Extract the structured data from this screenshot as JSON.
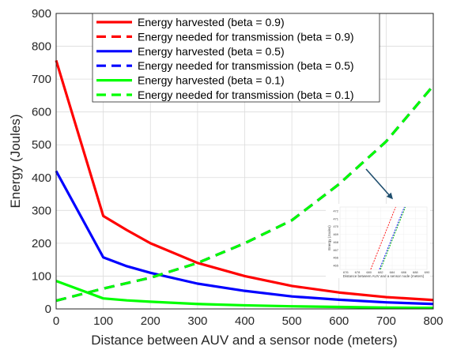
{
  "chart_data": {
    "type": "line",
    "xlabel": "Distance between AUV and a sensor node (meters)",
    "ylabel": "Energy (Joules)",
    "xlim": [
      0,
      800
    ],
    "ylim": [
      0,
      900
    ],
    "xticks": [
      0,
      100,
      200,
      300,
      400,
      500,
      600,
      700,
      800
    ],
    "yticks": [
      0,
      100,
      200,
      300,
      400,
      500,
      600,
      700,
      800,
      900
    ],
    "grid": true,
    "legend_position": "top-center",
    "series": [
      {
        "name": "Energy harvested (beta = 0.9)",
        "color": "#ff0000",
        "style": "solid",
        "x": [
          0,
          100,
          150,
          200,
          300,
          400,
          500,
          600,
          700,
          800
        ],
        "y": [
          757,
          283,
          240,
          200,
          140,
          100,
          70,
          50,
          36,
          27
        ]
      },
      {
        "name": "Energy needed for transmission (beta = 0.9)",
        "color": "#ff0000",
        "style": "dashed",
        "x": [
          0,
          100,
          200,
          300,
          400,
          500,
          600,
          700,
          800
        ],
        "y": [
          25,
          62,
          95,
          140,
          200,
          270,
          380,
          510,
          680
        ]
      },
      {
        "name": "Energy harvested (beta = 0.5)",
        "color": "#0000ff",
        "style": "solid",
        "x": [
          0,
          100,
          150,
          200,
          300,
          400,
          500,
          600,
          700,
          800
        ],
        "y": [
          420,
          157,
          130,
          110,
          77,
          55,
          38,
          28,
          20,
          15
        ]
      },
      {
        "name": "Energy needed for transmission (beta = 0.5)",
        "color": "#0000ff",
        "style": "dashed",
        "x": [
          0,
          100,
          200,
          300,
          400,
          500,
          600,
          700,
          800
        ],
        "y": [
          25,
          62,
          95,
          140,
          200,
          270,
          380,
          510,
          680
        ]
      },
      {
        "name": "Energy harvested (beta = 0.1)",
        "color": "#00ff00",
        "style": "solid",
        "x": [
          0,
          100,
          150,
          200,
          300,
          400,
          500,
          600,
          700,
          800
        ],
        "y": [
          85,
          32,
          26,
          22,
          15,
          11,
          8,
          6,
          4,
          3
        ]
      },
      {
        "name": "Energy needed for transmission (beta = 0.1)",
        "color": "#00ff00",
        "style": "dashed",
        "x": [
          0,
          100,
          200,
          300,
          400,
          500,
          600,
          700,
          800
        ],
        "y": [
          25,
          62,
          95,
          140,
          200,
          270,
          380,
          510,
          680
        ]
      }
    ],
    "inset": {
      "xlabel": "Distance between AUV and a sensor node (meters)",
      "ylabel": "Energy (Joules)",
      "xlim": [
        675,
        690
      ],
      "ylim": [
        464.5,
        472.5
      ],
      "xticks": [
        676,
        678,
        680,
        682,
        684,
        686,
        688,
        690
      ],
      "yticks": [
        465,
        466,
        467,
        468,
        469,
        470,
        471,
        472
      ],
      "lines": [
        {
          "color": "#ff0000",
          "x": [
            680.3,
            684.6
          ],
          "y": [
            464.5,
            472.5
          ]
        },
        {
          "color": "#0000ff",
          "x": [
            681.8,
            686.1
          ],
          "y": [
            464.5,
            472.5
          ]
        },
        {
          "color": "#00c000",
          "x": [
            682.0,
            686.3
          ],
          "y": [
            464.5,
            472.5
          ]
        }
      ]
    }
  }
}
